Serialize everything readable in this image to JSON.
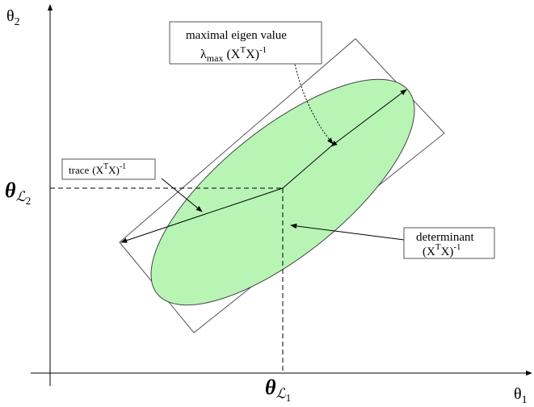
{
  "y_axis_label": {
    "symbol": "θ",
    "subscript": "2"
  },
  "x_axis_label": {
    "symbol": "θ",
    "subscript": "1"
  },
  "y_estimate_label": {
    "symbol": "θ",
    "subscript": "ℒ",
    "subsubscript": "2"
  },
  "x_estimate_label": {
    "symbol": "θ",
    "subscript": "ℒ",
    "subsubscript": "1"
  },
  "eigen_box": {
    "line1": "maximal eigen value",
    "symbol": "λ",
    "subscript": "max",
    "open": "(X",
    "sup1": "T",
    "close": "X)",
    "sup2": "-1"
  },
  "trace_box": {
    "word": "trace",
    "open": "(X",
    "sup1": "T",
    "close": "X)",
    "sup2": "-1"
  },
  "determinant_box": {
    "line1": "determinant",
    "open": "(X",
    "sup1": "T",
    "close": "X)",
    "sup2": "-1"
  }
}
